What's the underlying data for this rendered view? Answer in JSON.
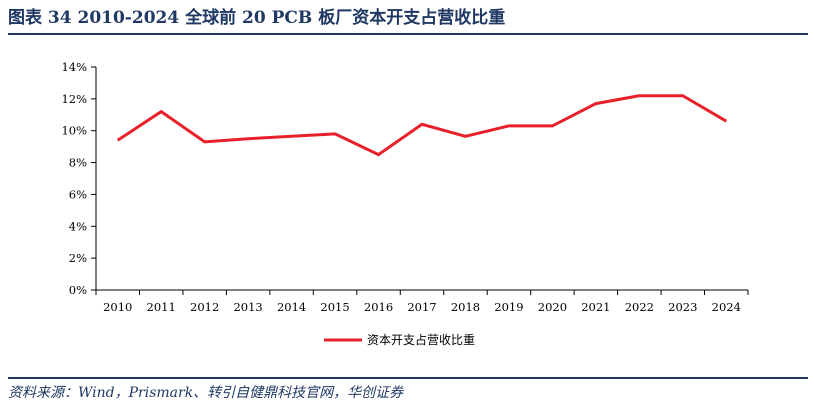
{
  "figure": {
    "title": "图表 34   2010-2024 全球前 20 PCB 板厂资本开支占营收比重",
    "source": "资料来源：Wind，Prismark、转引自健鼎科技官网，华创证券"
  },
  "colors": {
    "series": "#e8202a",
    "header": "#1f3864"
  },
  "chart_data": {
    "type": "line",
    "x": [
      "2010",
      "2011",
      "2012",
      "2013",
      "2014",
      "2015",
      "2016",
      "2017",
      "2018",
      "2019",
      "2020",
      "2021",
      "2022",
      "2023",
      "2024"
    ],
    "series": [
      {
        "name": "资本开支占营收比重",
        "values": [
          9.4,
          11.2,
          9.3,
          9.5,
          9.65,
          9.8,
          8.5,
          10.4,
          9.65,
          10.3,
          10.3,
          11.7,
          12.2,
          12.2,
          10.6
        ]
      }
    ],
    "ylim": [
      0,
      14
    ],
    "yticks": [
      "0%",
      "2%",
      "4%",
      "6%",
      "8%",
      "10%",
      "12%",
      "14%"
    ],
    "ytick_values": [
      0,
      2,
      4,
      6,
      8,
      10,
      12,
      14
    ],
    "grid": false,
    "legend_position": "bottom-center"
  }
}
